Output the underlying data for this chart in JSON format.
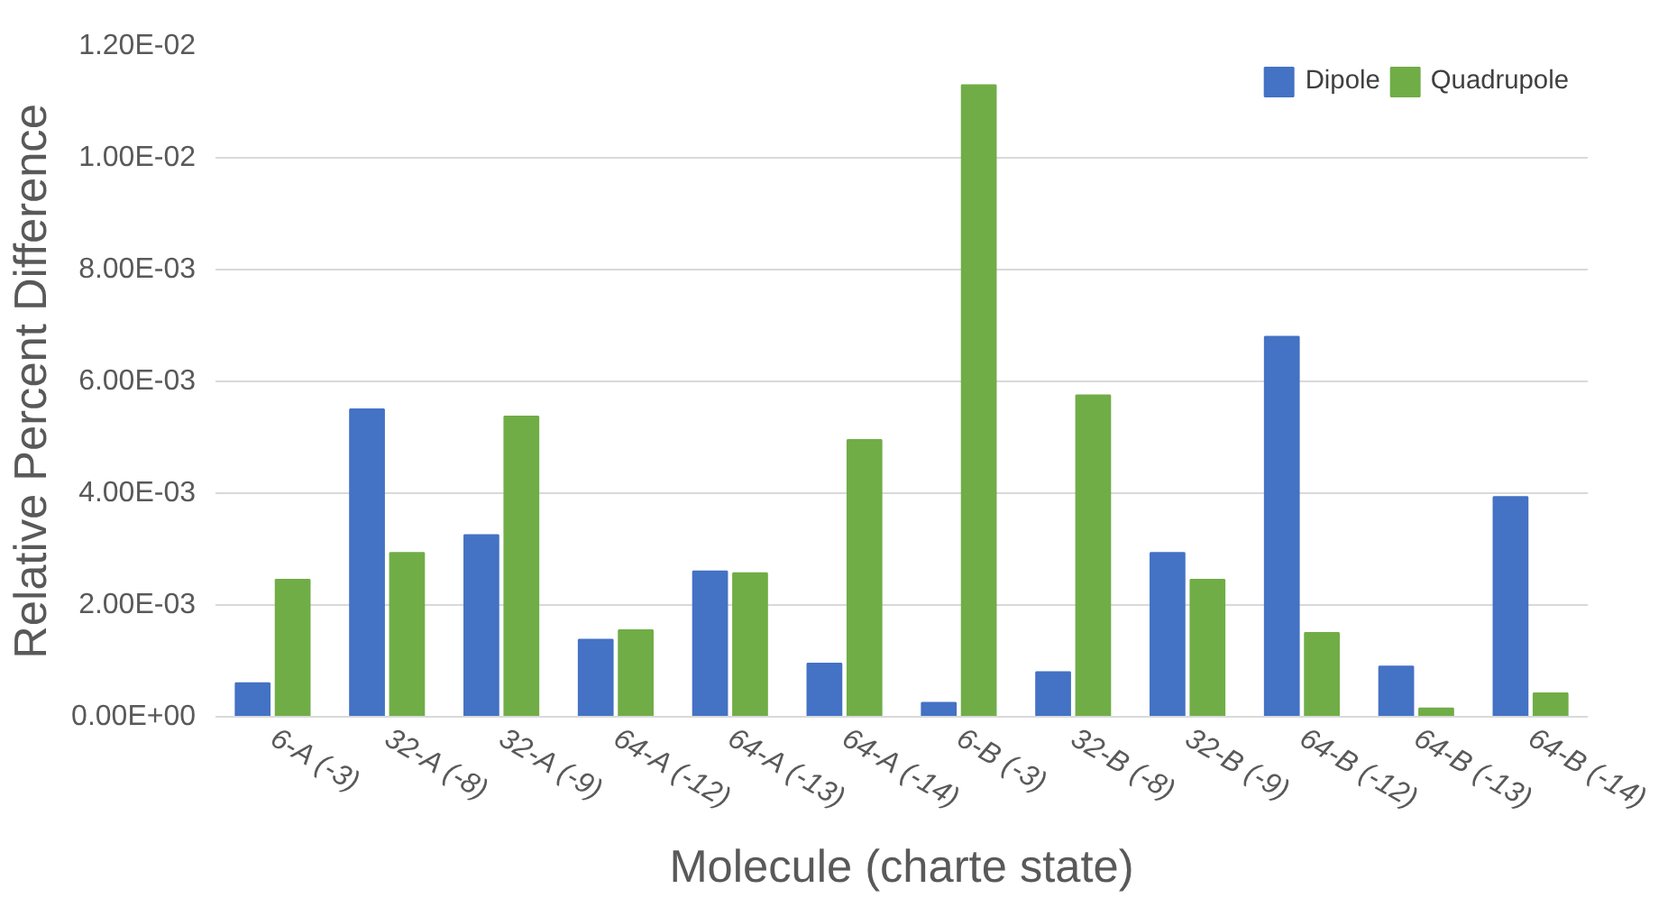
{
  "chart_data": {
    "type": "bar",
    "xlabel": "Molecule (charte state)",
    "ylabel": "Relative Percent Difference",
    "categories": [
      "6-A (-3)",
      "32-A (-8)",
      "32-A (-9)",
      "64-A (-12)",
      "64-A (-13)",
      "64-A (-14)",
      "6-B (-3)",
      "32-B (-8)",
      "32-B (-9)",
      "64-B (-12)",
      "64-B (-13)",
      "64-B (-14)"
    ],
    "series": [
      {
        "name": "Dipole",
        "color": "#4472c4",
        "values": [
          0.0006,
          0.0055,
          0.00325,
          0.00138,
          0.0026,
          0.00095,
          0.00025,
          0.0008,
          0.00293,
          0.0068,
          0.0009,
          0.00393
        ]
      },
      {
        "name": "Quadrupole",
        "color": "#70ad47",
        "values": [
          0.00245,
          0.00293,
          0.00537,
          0.00155,
          0.00257,
          0.00495,
          0.0113,
          0.00575,
          0.00245,
          0.0015,
          0.00015,
          0.00042
        ]
      }
    ],
    "ylim": [
      0,
      0.012
    ],
    "yticks": [
      {
        "value": 0,
        "label": "0.00E+00"
      },
      {
        "value": 0.002,
        "label": "2.00E-03"
      },
      {
        "value": 0.004,
        "label": "4.00E-03"
      },
      {
        "value": 0.006,
        "label": "6.00E-03"
      },
      {
        "value": 0.008,
        "label": "8.00E-03"
      },
      {
        "value": 0.01,
        "label": "1.00E-02"
      },
      {
        "value": 0.012,
        "label": "1.20E-02"
      }
    ],
    "grid": "y",
    "legend": "top right"
  }
}
